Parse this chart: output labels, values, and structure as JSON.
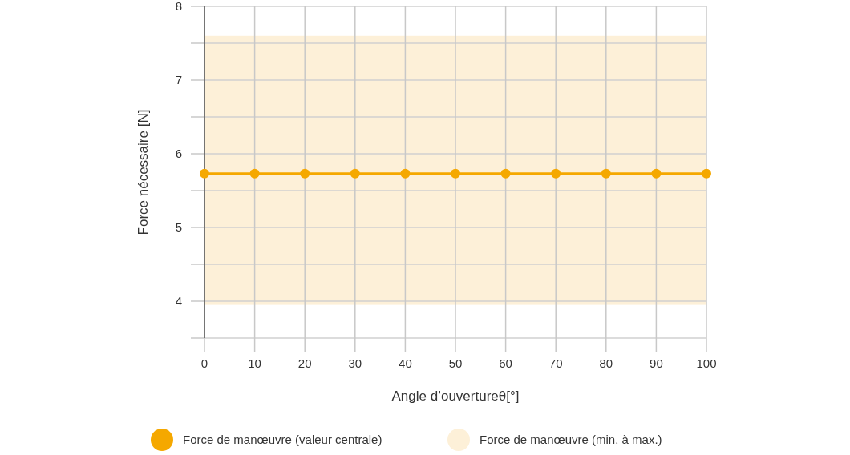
{
  "chart_data": {
    "type": "line",
    "xlabel": "Angle d’ouvertureθ[°]",
    "ylabel": "Force nécessaire [N]",
    "x": [
      0,
      10,
      20,
      30,
      40,
      50,
      60,
      70,
      80,
      90,
      100
    ],
    "series": [
      {
        "name": "Force de manœuvre (valeur centrale)",
        "color": "#f5a800",
        "values": [
          5.73,
          5.73,
          5.73,
          5.73,
          5.73,
          5.73,
          5.73,
          5.73,
          5.73,
          5.73,
          5.73
        ]
      }
    ],
    "bands": [
      {
        "axis": "y",
        "from": 3.95,
        "to": 7.6,
        "label": "Force de manœuvre (min. à max.)",
        "color": "#fdf0d8"
      }
    ],
    "xlim": [
      0,
      100
    ],
    "xticks": [
      0,
      10,
      20,
      30,
      40,
      50,
      60,
      70,
      80,
      90,
      100
    ],
    "ylim": [
      3.5,
      8
    ],
    "yticks": [
      {
        "value": 3.5,
        "label": null
      },
      4,
      {
        "value": 4.5,
        "label": null
      },
      5,
      {
        "value": 5.5,
        "label": null
      },
      6,
      {
        "value": 6.5,
        "label": null
      },
      7,
      {
        "value": 7.5,
        "label": null
      },
      8
    ],
    "grid": true,
    "marker": "circle",
    "line_style": "solid",
    "legend": "bottom"
  }
}
